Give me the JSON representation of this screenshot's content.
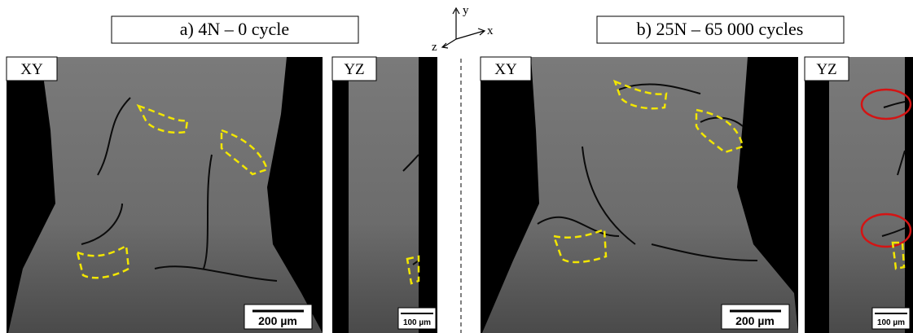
{
  "axes": {
    "y": "y",
    "x": "x",
    "z": "z"
  },
  "panels": [
    {
      "title": "a) 4N – 0 cycle",
      "views": [
        {
          "label": "XY",
          "scale_bar": "200 µm"
        },
        {
          "label": "YZ",
          "scale_bar": "100 µm"
        }
      ]
    },
    {
      "title": "b) 25N – 65 000 cycles",
      "views": [
        {
          "label": "XY",
          "scale_bar": "200 µm"
        },
        {
          "label": "YZ",
          "scale_bar": "100 µm"
        }
      ]
    }
  ]
}
